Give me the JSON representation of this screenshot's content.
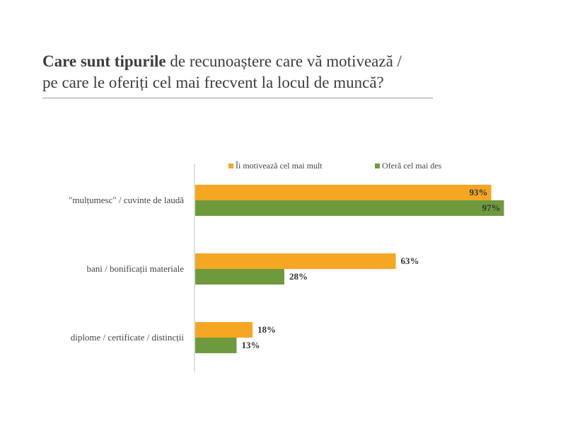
{
  "title": {
    "bold_part": "Care sunt tipurile",
    "line1_rest": " de recunoaștere care vă motivează /",
    "line2": "pe care le oferiți  cel mai frecvent la locul de muncă?"
  },
  "chart_data": {
    "type": "bar",
    "orientation": "horizontal",
    "categories": [
      "\"mulțumesc\" / cuvinte de laudă",
      "bani / bonificații materiale",
      "diplome / certificate / distincții"
    ],
    "series": [
      {
        "name": "Îi motivează cel mai mult",
        "values": [
          93,
          63,
          18
        ],
        "labels": [
          "93%",
          "63%",
          "18%"
        ],
        "color": "#f5a623"
      },
      {
        "name": "Oferă cel mai des",
        "values": [
          97,
          28,
          13
        ],
        "labels": [
          "97%",
          "28%",
          "13%"
        ],
        "color": "#6e9a3e"
      }
    ],
    "xlim": [
      0,
      100
    ],
    "legend_position": "top",
    "grid": false
  }
}
